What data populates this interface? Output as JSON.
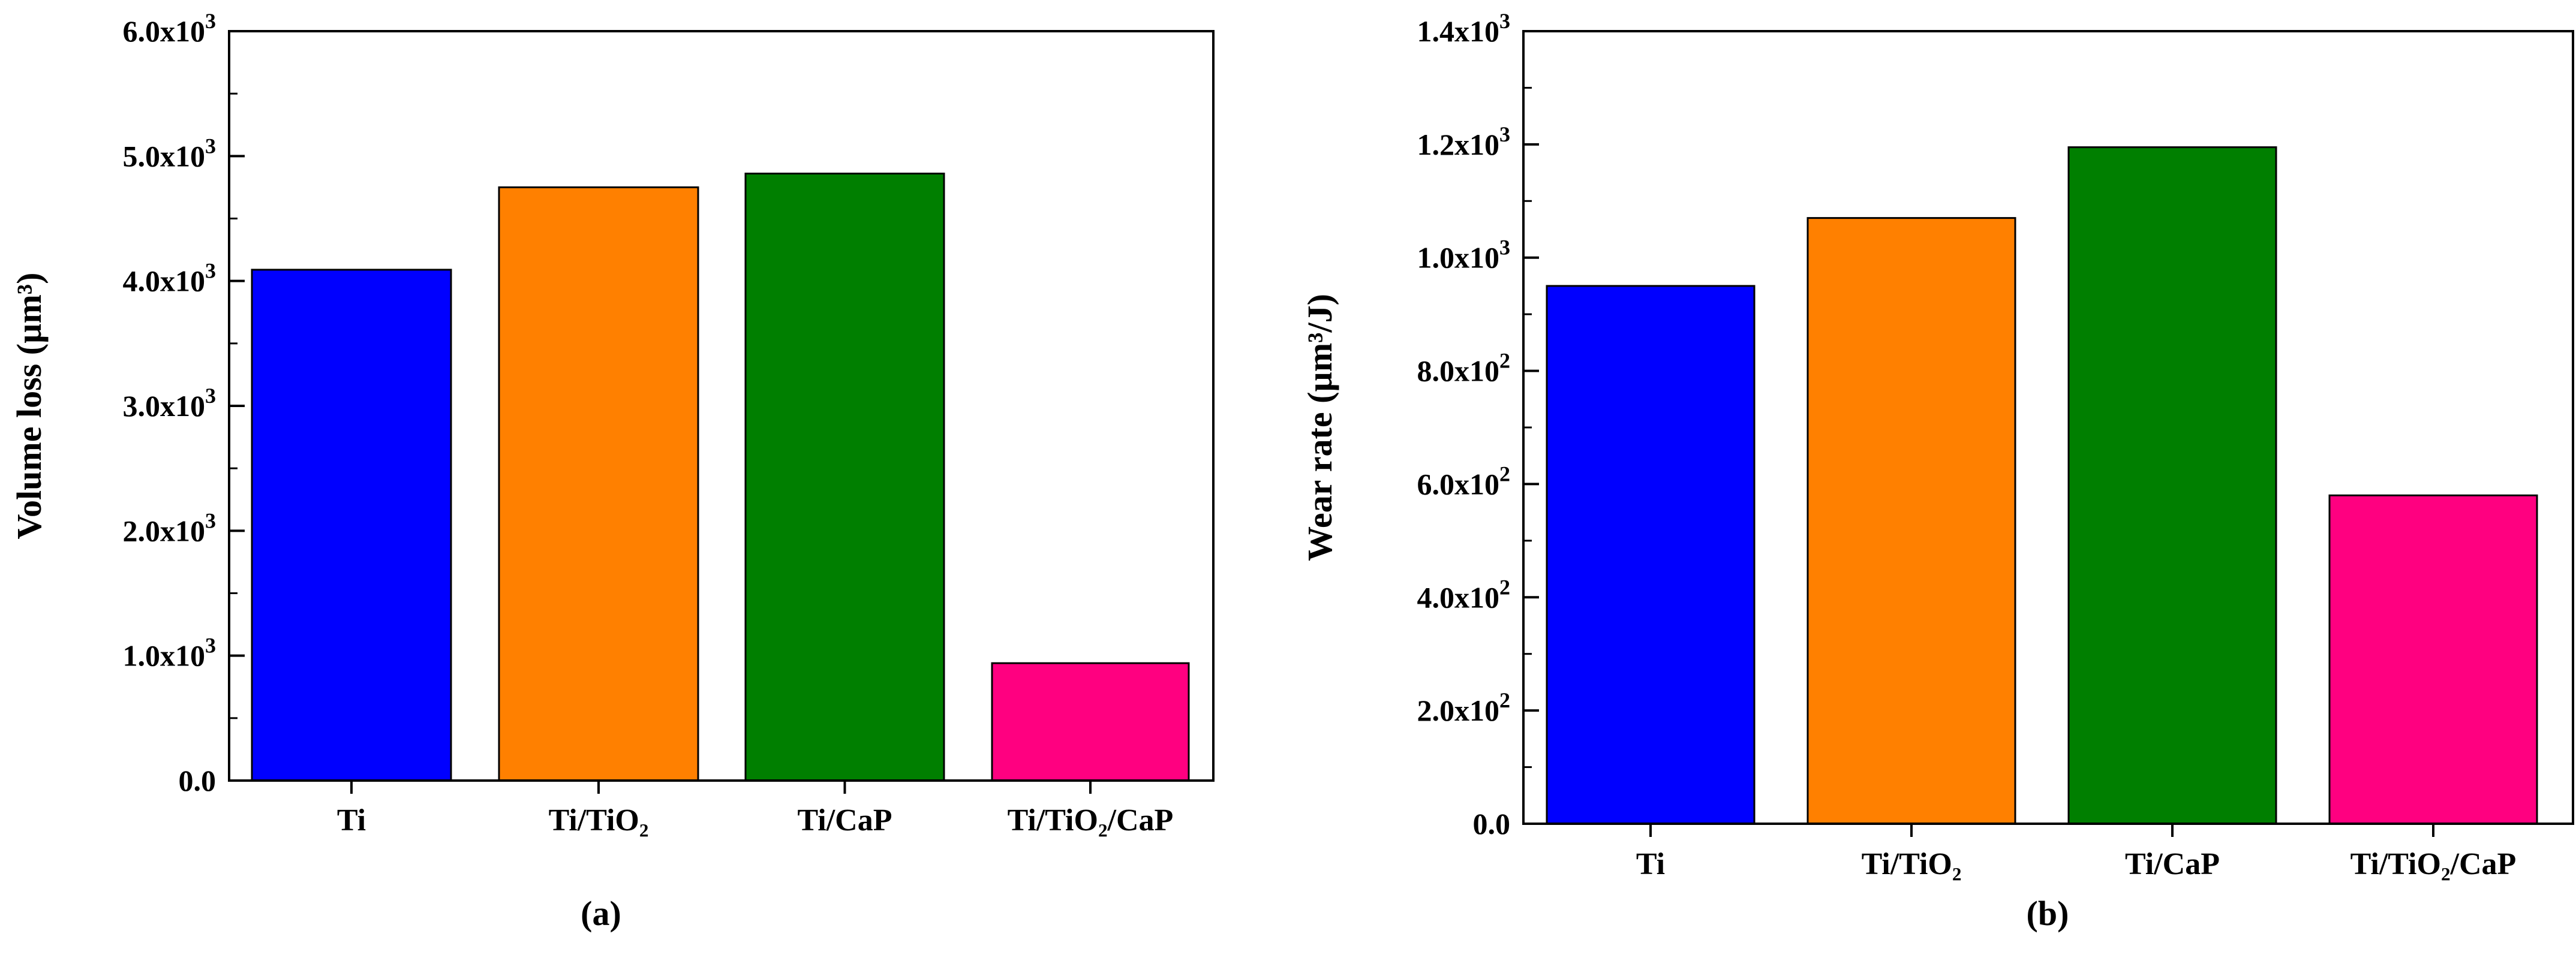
{
  "chart_data": [
    {
      "type": "bar",
      "panel_label": "(a)",
      "ylabel": "Volume loss (µm³)",
      "categories": [
        "Ti",
        "Ti/TiO₂",
        "Ti/CaP",
        "Ti/TiO₂/CaP"
      ],
      "values": [
        4090,
        4750,
        4860,
        940
      ],
      "colors": [
        "#0000ff",
        "#ff8000",
        "#007f00",
        "#ff0080"
      ],
      "ylim": [
        0,
        6000
      ],
      "yticks": [
        {
          "value": 0,
          "label": "0.0",
          "exp": ""
        },
        {
          "value": 1000,
          "label": "1.0x10",
          "exp": "3"
        },
        {
          "value": 2000,
          "label": "2.0x10",
          "exp": "3"
        },
        {
          "value": 3000,
          "label": "3.0x10",
          "exp": "3"
        },
        {
          "value": 4000,
          "label": "4.0x10",
          "exp": "3"
        },
        {
          "value": 5000,
          "label": "5.0x10",
          "exp": "3"
        },
        {
          "value": 6000,
          "label": "6.0x10",
          "exp": "3"
        }
      ],
      "grid": false
    },
    {
      "type": "bar",
      "panel_label": "(b)",
      "ylabel": "Wear rate (µm³/J)",
      "categories": [
        "Ti",
        "Ti/TiO₂",
        "Ti/CaP",
        "Ti/TiO₂/CaP"
      ],
      "values": [
        950,
        1070,
        1195,
        580
      ],
      "colors": [
        "#0000ff",
        "#ff8000",
        "#007f00",
        "#ff0080"
      ],
      "ylim": [
        0,
        1400
      ],
      "yticks": [
        {
          "value": 0,
          "label": "0.0",
          "exp": ""
        },
        {
          "value": 200,
          "label": "2.0x10",
          "exp": "2"
        },
        {
          "value": 400,
          "label": "4.0x10",
          "exp": "2"
        },
        {
          "value": 600,
          "label": "6.0x10",
          "exp": "2"
        },
        {
          "value": 800,
          "label": "8.0x10",
          "exp": "2"
        },
        {
          "value": 1000,
          "label": "1.0x10",
          "exp": "3"
        },
        {
          "value": 1200,
          "label": "1.2x10",
          "exp": "3"
        },
        {
          "value": 1400,
          "label": "1.4x10",
          "exp": "3"
        }
      ],
      "grid": false
    }
  ]
}
